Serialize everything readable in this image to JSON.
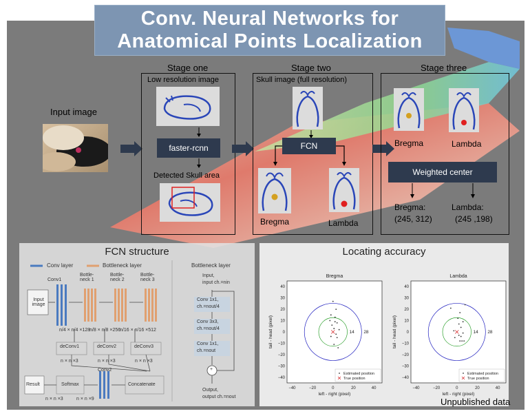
{
  "title": {
    "line1": "Conv. Neural Networks for",
    "line2": "Anatomical Points Localization"
  },
  "input_label": "Input image",
  "stage_one": {
    "heading": "Stage one",
    "subtitle": "Low resolution image",
    "detector": "faster-rcnn",
    "detected": "Detected Skull area"
  },
  "stage_two": {
    "heading": "Stage two",
    "subtitle": "Skull image  (full resolution)",
    "network": "FCN",
    "bregma": "Bregma",
    "lambda": "Lambda"
  },
  "stage_three": {
    "heading": "Stage three",
    "bregma": "Bregma",
    "lambda": "Lambda",
    "weighted": "Weighted center",
    "bregma_result_label": "Bregma:",
    "bregma_result_value": "(245, 312)",
    "lambda_result_label": "Lambda:",
    "lambda_result_value": "(245 ,198)"
  },
  "fcn": {
    "title": "FCN structure",
    "legend_conv": "Conv layer",
    "legend_bottleneck": "Bottleneck layer",
    "input_box": "Input image",
    "input_dim": "n × n×3",
    "conv1": "Conv1",
    "bottleneck_1": "Bottle-neck 1",
    "bottleneck_2": "Bottle-neck 2",
    "bottleneck_3": "Bottle-neck 3",
    "dim_conv1_ch": "n × n×32",
    "dim_conv1_sp": "n/4 × n/4 ×128",
    "dim_b1_ch": "n/4 × n/4 ×128",
    "dim_b1_sp": "n/8 × n/8 ×256",
    "dim_b2_ch": "n/8 × n/8 ×256",
    "dim_b2_sp": "n/16 × n/16 ×512",
    "dim_b3_ch": "n/16 × n/16 ×512",
    "deconv1": "deConv1",
    "deconv2": "deConv2",
    "deconv3": "deConv3",
    "deconv_dim": "n × n ×3",
    "conv2": "Conv2",
    "conv2_dim": "n × n ×9",
    "result": "Result",
    "result_dim": "n × n ×3",
    "softmax": "Softmax",
    "concatenate": "Concatenate",
    "bneck_title": "Bottleneck layer",
    "bneck_input": "Input,",
    "bneck_input_ch": "input ch.=nin",
    "bneck_c1": "Conv 1x1,",
    "bneck_c1_ch": "ch.=nout/4",
    "bneck_c2": "Conv 3x3,",
    "bneck_c2_ch": "ch.=nout/4",
    "bneck_c3": "Conv 1x1,",
    "bneck_c3_ch": "ch.=nout",
    "plus": "+",
    "bneck_output": "Output,",
    "bneck_output_ch": "output ch.=nout"
  },
  "accuracy": {
    "title": "Locating accuracy"
  },
  "footer": "Unpublished data",
  "colors": {
    "conv": "#4a7ac0",
    "bottleneck": "#e0a070",
    "dark_box": "#2e3a4e",
    "estimated": "#333333",
    "true": "#d62728",
    "ring_inner": "#2ca02c",
    "ring_outer": "#1f1fbf"
  },
  "chart_data": [
    {
      "type": "scatter",
      "title": "Bregma",
      "xlabel": "left - right (pixel)",
      "ylabel": "tail - head (pixel)",
      "xticks": [
        "−40",
        "−20",
        "0",
        "20",
        "40"
      ],
      "yticks": [
        "40",
        "30",
        "20",
        "10",
        "0",
        "−10",
        "−20",
        "−30",
        "−40"
      ],
      "xlim": [
        -45,
        48
      ],
      "ylim": [
        -45,
        45
      ],
      "circles": [
        {
          "radius": 14,
          "label": "14",
          "color": "green"
        },
        {
          "radius": 28,
          "label": "28",
          "color": "blue"
        }
      ],
      "legend": [
        "Estimated position",
        "True position"
      ],
      "legend_position": "bottom-right",
      "series": [
        {
          "name": "Estimated position",
          "points": [
            [
              0,
              27
            ],
            [
              3,
              20
            ],
            [
              -2,
              15
            ],
            [
              2,
              13
            ],
            [
              4,
              8
            ],
            [
              -1,
              6
            ],
            [
              1,
              3
            ],
            [
              3,
              -2
            ],
            [
              -2,
              -4
            ],
            [
              4,
              -5
            ],
            [
              1,
              -11
            ],
            [
              5,
              -14
            ],
            [
              6,
              2
            ],
            [
              2,
              9
            ],
            [
              -3,
              10
            ]
          ]
        },
        {
          "name": "True position",
          "points": [
            [
              0,
              0
            ]
          ]
        }
      ]
    },
    {
      "type": "scatter",
      "title": "Lambda",
      "xlabel": "left - right (pixel)",
      "ylabel": "tail - head (pixel)",
      "xticks": [
        "−40",
        "−20",
        "0",
        "20",
        "40"
      ],
      "yticks": [
        "40",
        "30",
        "20",
        "10",
        "0",
        "−10",
        "−20",
        "−30",
        "−40"
      ],
      "xlim": [
        -45,
        48
      ],
      "ylim": [
        -45,
        45
      ],
      "circles": [
        {
          "radius": 14,
          "label": "14",
          "color": "green"
        },
        {
          "radius": 28,
          "label": "28",
          "color": "blue"
        }
      ],
      "legend": [
        "Estimated position",
        "True position"
      ],
      "legend_position": "bottom-right",
      "series": [
        {
          "name": "Estimated position",
          "points": [
            [
              8,
              24
            ],
            [
              3,
              17
            ],
            [
              6,
              9
            ],
            [
              2,
              7
            ],
            [
              4,
              4
            ],
            [
              -3,
              1
            ],
            [
              6,
              -1
            ],
            [
              2,
              -3
            ],
            [
              4,
              -4
            ],
            [
              -2,
              -5
            ],
            [
              5,
              -8
            ],
            [
              7,
              -8
            ],
            [
              3,
              -8
            ],
            [
              -6,
              21
            ],
            [
              1,
              12
            ]
          ]
        },
        {
          "name": "True position",
          "points": [
            [
              0,
              0
            ]
          ]
        }
      ]
    }
  ]
}
